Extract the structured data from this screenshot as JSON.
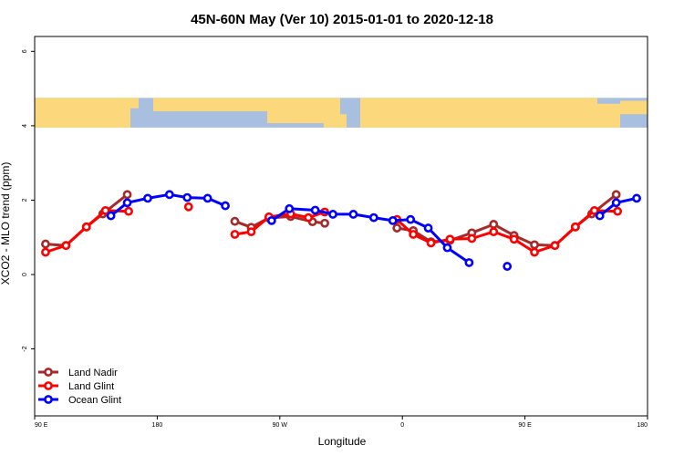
{
  "chart_data": {
    "type": "line",
    "title": "45N-60N May (Ver 10)   2015-01-01 to 2020-12-18",
    "xlabel": "Longitude",
    "ylabel": "XCO2 - MLO trend (ppm)",
    "x_ticks": [
      {
        "value": 0,
        "label": "90 E"
      },
      {
        "value": 90,
        "label": "180"
      },
      {
        "value": 180,
        "label": "90 W"
      },
      {
        "value": 270,
        "label": "0"
      },
      {
        "value": 360,
        "label": "90 E"
      },
      {
        "value": 450,
        "label": "180"
      }
    ],
    "y_ticks": [
      {
        "value": -2,
        "label": "-2"
      },
      {
        "value": 0,
        "label": "0"
      },
      {
        "value": 2,
        "label": "2"
      },
      {
        "value": 4,
        "label": "4"
      },
      {
        "value": 6,
        "label": "6"
      }
    ],
    "xlim": [
      0,
      450
    ],
    "ylim": [
      -3.8,
      6.4
    ],
    "map_band": {
      "ymin": 3.95,
      "ymax": 4.75,
      "ocean_color": "#a8bfe0",
      "land_color": "#fcd87c"
    },
    "legend_position": "bottom-left",
    "series": [
      {
        "name": "Land Nadir",
        "color": "#a52a2a",
        "segments": [
          [
            [
              8,
              0.82
            ],
            [
              23,
              0.78
            ],
            [
              38,
              1.28
            ],
            [
              50,
              1.63
            ],
            [
              68,
              2.15
            ]
          ],
          [
            [
              147,
              1.43
            ],
            [
              159,
              1.27
            ],
            [
              172,
              1.52
            ],
            [
              188,
              1.56
            ],
            [
              204,
              1.42
            ],
            [
              213,
              1.38
            ]
          ],
          [
            [
              266,
              1.25
            ],
            [
              278,
              1.18
            ],
            [
              291,
              0.88
            ],
            [
              305,
              0.92
            ],
            [
              321,
              1.12
            ],
            [
              337,
              1.35
            ],
            [
              352,
              1.05
            ],
            [
              367,
              0.8
            ],
            [
              382,
              0.78
            ],
            [
              397,
              1.28
            ],
            [
              409,
              1.63
            ],
            [
              427,
              2.15
            ]
          ]
        ]
      },
      {
        "name": "Land Glint",
        "color": "#ff0000",
        "segments": [
          [
            [
              8,
              0.6
            ],
            [
              23,
              0.78
            ],
            [
              38,
              1.28
            ],
            [
              52,
              1.72
            ],
            [
              69,
              1.7
            ]
          ],
          [
            [
              113,
              1.82
            ]
          ],
          [
            [
              147,
              1.08
            ],
            [
              159,
              1.15
            ],
            [
              172,
              1.55
            ],
            [
              188,
              1.63
            ],
            [
              201,
              1.53
            ],
            [
              213,
              1.68
            ]
          ],
          [
            [
              266,
              1.48
            ],
            [
              278,
              1.08
            ],
            [
              291,
              0.85
            ],
            [
              305,
              0.95
            ],
            [
              321,
              0.97
            ],
            [
              337,
              1.15
            ],
            [
              352,
              0.95
            ],
            [
              367,
              0.6
            ],
            [
              382,
              0.78
            ],
            [
              397,
              1.28
            ],
            [
              411,
              1.72
            ],
            [
              428,
              1.7
            ]
          ]
        ]
      },
      {
        "name": "Ocean Glint",
        "color": "#0000ff",
        "segments": [
          [
            [
              56,
              1.58
            ],
            [
              68,
              1.93
            ],
            [
              83,
              2.05
            ],
            [
              99,
              2.15
            ],
            [
              112,
              2.07
            ],
            [
              127,
              2.05
            ],
            [
              140,
              1.85
            ]
          ],
          [
            [
              174,
              1.45
            ],
            [
              187,
              1.77
            ],
            [
              206,
              1.73
            ],
            [
              219,
              1.62
            ],
            [
              234,
              1.62
            ],
            [
              249,
              1.53
            ],
            [
              263,
              1.45
            ],
            [
              276,
              1.48
            ],
            [
              289,
              1.25
            ],
            [
              303,
              0.72
            ],
            [
              319,
              0.32
            ]
          ],
          [
            [
              347,
              0.22
            ]
          ],
          [
            [
              415,
              1.58
            ],
            [
              427,
              1.93
            ],
            [
              442,
              2.05
            ]
          ]
        ]
      }
    ]
  }
}
